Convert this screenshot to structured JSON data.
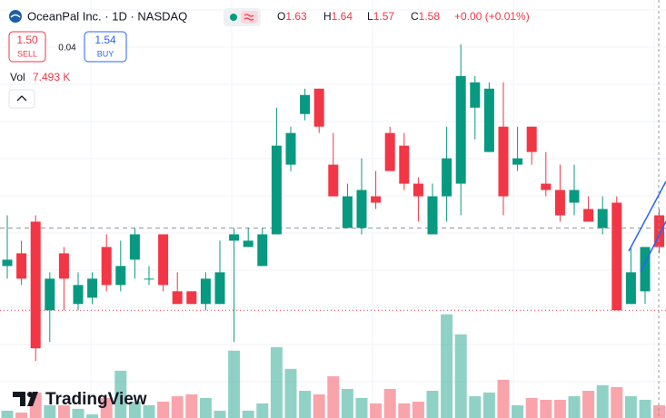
{
  "chart_data": {
    "type": "candlestick",
    "title": "OceanPal Inc. · 1D · NASDAQ",
    "header_ohlc": [
      {
        "prefix": "O",
        "value": 1.63
      },
      {
        "prefix": "H",
        "value": 1.64
      },
      {
        "prefix": "L",
        "value": 1.57
      },
      {
        "prefix": "C",
        "value": 1.58
      }
    ],
    "change_label": "+0.00 (+0.01%)",
    "quote": {
      "sell": {
        "value": 1.5,
        "label": "1.50"
      },
      "sell_text": "SELL",
      "spread": 0.04,
      "buy": {
        "value": 1.54,
        "label": "1.54"
      },
      "buy_text": "BUY"
    },
    "volume_legend": {
      "label": "Vol",
      "value": 7493,
      "value_label": "7.493 K"
    },
    "watermark": "TradingView",
    "up_color": "#089981",
    "down_color": "#f23645",
    "ylim": [
      1.31,
      1.97
    ],
    "volume_ylim": [
      0,
      80000
    ],
    "price_lines": [
      {
        "value": 1.61,
        "style": "dashed",
        "color": "#9598a1"
      },
      {
        "value": 1.48,
        "style": "dotted",
        "color": "#f23645"
      }
    ],
    "open": [
      1.55,
      1.57,
      1.62,
      1.48,
      1.57,
      1.49,
      1.5,
      1.58,
      1.52,
      1.56,
      1.53,
      1.6,
      1.51,
      1.51,
      1.49,
      1.49,
      1.59,
      1.58,
      1.55,
      1.6,
      1.71,
      1.79,
      1.83,
      1.71,
      1.61,
      1.61,
      1.66,
      1.76,
      1.74,
      1.68,
      1.6,
      1.66,
      1.68,
      1.8,
      1.73,
      1.77,
      1.71,
      1.77,
      1.68,
      1.67,
      1.65,
      1.64,
      1.61,
      1.65,
      1.49,
      1.51,
      1.63
    ],
    "high": [
      1.63,
      1.59,
      1.63,
      1.54,
      1.58,
      1.54,
      1.54,
      1.6,
      1.59,
      1.61,
      1.55,
      1.6,
      1.54,
      1.51,
      1.54,
      1.59,
      1.61,
      1.61,
      1.61,
      1.8,
      1.77,
      1.83,
      1.83,
      1.76,
      1.68,
      1.72,
      1.7,
      1.77,
      1.76,
      1.69,
      1.68,
      1.77,
      1.9,
      1.85,
      1.84,
      1.84,
      1.77,
      1.77,
      1.73,
      1.71,
      1.71,
      1.66,
      1.66,
      1.66,
      1.58,
      1.58,
      1.64
    ],
    "low": [
      1.53,
      1.52,
      1.4,
      1.43,
      1.48,
      1.48,
      1.49,
      1.51,
      1.51,
      1.53,
      1.52,
      1.51,
      1.49,
      1.49,
      1.48,
      1.49,
      1.43,
      1.58,
      1.55,
      1.6,
      1.7,
      1.78,
      1.76,
      1.66,
      1.61,
      1.6,
      1.64,
      1.7,
      1.67,
      1.62,
      1.6,
      1.62,
      1.63,
      1.75,
      1.73,
      1.63,
      1.7,
      1.71,
      1.66,
      1.62,
      1.63,
      1.62,
      1.6,
      1.48,
      1.49,
      1.49,
      1.57
    ],
    "close": [
      1.56,
      1.53,
      1.42,
      1.53,
      1.53,
      1.52,
      1.53,
      1.52,
      1.55,
      1.6,
      1.53,
      1.52,
      1.49,
      1.49,
      1.53,
      1.54,
      1.6,
      1.59,
      1.6,
      1.74,
      1.76,
      1.82,
      1.77,
      1.66,
      1.66,
      1.67,
      1.65,
      1.7,
      1.68,
      1.66,
      1.66,
      1.72,
      1.85,
      1.84,
      1.83,
      1.66,
      1.72,
      1.73,
      1.67,
      1.63,
      1.67,
      1.62,
      1.64,
      1.48,
      1.54,
      1.58,
      1.58
    ],
    "volume": [
      4300,
      3200,
      15000,
      7500,
      7500,
      5400,
      2100,
      11800,
      27800,
      9600,
      7500,
      9600,
      12800,
      13900,
      11800,
      4300,
      39600,
      4300,
      8600,
      41700,
      28900,
      16000,
      13900,
      24600,
      17100,
      11800,
      8600,
      17100,
      8600,
      9600,
      16000,
      61000,
      49200,
      12800,
      15000,
      22500,
      7500,
      11800,
      10700,
      10700,
      12800,
      16000,
      19300,
      18200,
      12800,
      10700,
      7493
    ]
  }
}
